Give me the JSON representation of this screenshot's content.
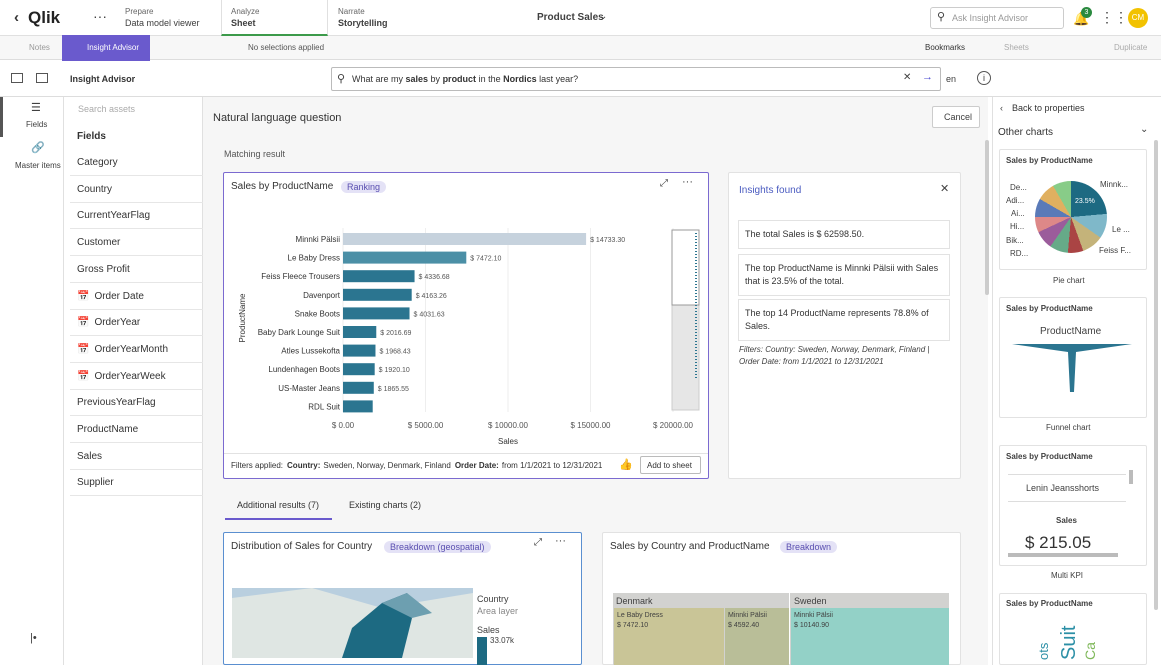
{
  "top_bar": {
    "app": "Qlik",
    "tabs": [
      {
        "label": "Prepare",
        "sub": "Data model viewer"
      },
      {
        "label": "Analyze",
        "sub": "Sheet"
      },
      {
        "label": "Narrate",
        "sub": "Storytelling"
      }
    ],
    "title": "Product Sales",
    "search": "Ask Insight Advisor",
    "notifications": "3",
    "avatar": "CM"
  },
  "toolbar": {
    "notes": "Notes",
    "insight_advisor": "Insight Advisor",
    "selections": "No selections applied",
    "bookmarks": "Bookmarks",
    "sheets": "Sheets",
    "duplicate": "Duplicate"
  },
  "advisor_bar": {
    "label": "Insight Advisor",
    "question": [
      "What are my ",
      "sales",
      " by ",
      "product",
      " in the ",
      "Nordics",
      " last year?"
    ],
    "language": "en"
  },
  "rail": {
    "fields": "Fields",
    "master_items": "Master items"
  },
  "assets": {
    "search": "Search assets",
    "header": "Fields",
    "fields": [
      "Category",
      "Country",
      "CurrentYearFlag",
      "Customer",
      "Gross Profit",
      "Order Date",
      "OrderYear",
      "OrderYearMonth",
      "OrderYearWeek",
      "PreviousYearFlag",
      "ProductName",
      "Sales",
      "Supplier"
    ]
  },
  "main": {
    "heading": "Natural language question",
    "cancel": "Cancel",
    "matching": "Matching result",
    "badge": "Ranking",
    "filters_label": "Filters applied:",
    "filters": [
      {
        "key": "Country:",
        "value": "Sweden, Norway, Denmark, Finland"
      },
      {
        "key": "Order Date:",
        "value": "from 1/1/2021 to 12/31/2021"
      }
    ],
    "add": "Add to sheet"
  },
  "chart_data": {
    "type": "bar",
    "orientation": "horizontal",
    "title": "Sales by ProductName",
    "x_label": "Sales",
    "y_label": "ProductName",
    "categories": [
      "Minnki Pälsii",
      "Le Baby Dress",
      "Feiss Fleece Trousers",
      "Davenport",
      "Snake Boots",
      "Baby Dark Lounge Suit",
      "Atles Lussekofta",
      "Lundenhagen Boots",
      "US-Master Jeans",
      "RDL Suit"
    ],
    "values": [
      14733.3,
      7472.1,
      4336.68,
      4163.26,
      4031.63,
      2016.69,
      1968.43,
      1920.1,
      1865.55,
      1800
    ],
    "value_labels": [
      "$ 14733.30",
      "$ 7472.10",
      "$ 4336.68",
      "$ 4163.26",
      "$ 4031.63",
      "$ 2016.69",
      "$ 1968.43",
      "$ 1920.10",
      "$ 1865.55",
      null
    ],
    "colors": [
      "#c6d2dd",
      "#4b8fa6",
      "#2b7590",
      "#2b7590",
      "#2b7590",
      "#2b7590",
      "#2b7590",
      "#2b7590",
      "#2b7590",
      "#2b7590"
    ],
    "xlim": [
      0,
      20000
    ],
    "xticks": [
      {
        "value": 0,
        "label": "$ 0.00"
      },
      {
        "value": 5000,
        "label": "$ 5000.00"
      },
      {
        "value": 10000,
        "label": "$ 10000.00"
      },
      {
        "value": 15000,
        "label": "$ 15000.00"
      },
      {
        "value": 20000,
        "label": "$ 20000.00"
      }
    ],
    "grid": true
  },
  "insights": {
    "title": "Insights found",
    "items": [
      "The total Sales is $ 62598.50.",
      "The top ProductName is Minnki Pälsii with Sales that is 23.5% of the total.",
      "The top 14 ProductName represents 78.8% of Sales."
    ],
    "note": "Filters: Country: Sweden, Norway, Denmark, Finland | Order Date: from 1/1/2021 to 12/31/2021"
  },
  "tabs": [
    "Additional results (7)",
    "Existing charts (2)"
  ],
  "map_card": {
    "title": "Distribution of Sales for Country",
    "badge": "Breakdown (geospatial)",
    "legend_title": "Country",
    "legend_sub": "Area layer",
    "legend_measure": "Sales",
    "legend_value": "33.07k"
  },
  "treemap_card": {
    "title": "Sales by Country and ProductName",
    "badge": "Breakdown",
    "groups": [
      "Denmark",
      "Sweden"
    ],
    "cells": [
      {
        "name": "Le Baby Dress",
        "value": "$ 7472.10"
      },
      {
        "name": "Minnki Pälsii",
        "value": "$ 4592.40"
      },
      {
        "name": "Minnki Pälsii",
        "value": "$ 10140.90"
      }
    ]
  },
  "right_panel": {
    "back": "Back to properties",
    "section": "Other charts",
    "cards": [
      {
        "title": "Sales by ProductName",
        "caption": "Pie chart"
      },
      {
        "title": "Sales by ProductName",
        "caption": "Funnel chart"
      },
      {
        "title": "Sales by ProductName",
        "caption": "Multi KPI"
      },
      {
        "title": "Sales by ProductName"
      }
    ],
    "pie_labels": [
      "De...",
      "Adi...",
      "Ai...",
      "Hi...",
      "Bik...",
      "RD...",
      "Minnk...",
      "Le ...",
      "Feiss F..."
    ],
    "pie_center": "23.5%",
    "funnel_title": "ProductName",
    "kpi_dimension": "Lenin Jeansshorts",
    "kpi_measure": "Sales",
    "kpi_value": "$ 215.05",
    "cloud_words": [
      "Suit",
      "Ca",
      "ots"
    ]
  }
}
